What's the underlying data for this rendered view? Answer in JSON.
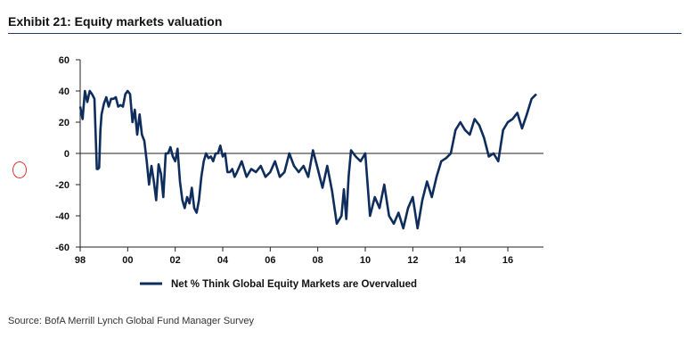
{
  "header": {
    "title": "Exhibit 21: Equity markets valuation"
  },
  "footer": {
    "source": "Source: BofA Merrill Lynch Global Fund Manager Survey"
  },
  "colors": {
    "series": "#0e2d5c",
    "rule": "#1f3a6b",
    "marker": "#e0312e"
  },
  "chart_data": {
    "type": "line",
    "title": "",
    "xlabel": "",
    "ylabel": "",
    "xlim": [
      1998,
      2017.5
    ],
    "ylim": [
      -60,
      60
    ],
    "x_ticks": [
      "98",
      "00",
      "02",
      "04",
      "06",
      "08",
      "10",
      "12",
      "14",
      "16"
    ],
    "y_ticks": [
      60,
      40,
      20,
      0,
      -20,
      -40,
      -60
    ],
    "legend": "bottom-center",
    "series": [
      {
        "name": "Net % Think Global Equity Markets are Overvalued",
        "x": [
          1998.0,
          1998.1,
          1998.2,
          1998.3,
          1998.4,
          1998.5,
          1998.6,
          1998.7,
          1998.75,
          1998.8,
          1998.85,
          1998.9,
          1999.0,
          1999.1,
          1999.2,
          1999.3,
          1999.4,
          1999.5,
          1999.6,
          1999.7,
          1999.8,
          1999.9,
          2000.0,
          2000.1,
          2000.2,
          2000.3,
          2000.4,
          2000.5,
          2000.6,
          2000.7,
          2000.8,
          2000.9,
          2001.0,
          2001.1,
          2001.2,
          2001.3,
          2001.4,
          2001.5,
          2001.6,
          2001.7,
          2001.8,
          2001.9,
          2002.0,
          2002.1,
          2002.2,
          2002.3,
          2002.4,
          2002.5,
          2002.6,
          2002.7,
          2002.8,
          2002.9,
          2003.0,
          2003.1,
          2003.2,
          2003.3,
          2003.4,
          2003.5,
          2003.6,
          2003.7,
          2003.8,
          2003.9,
          2004.0,
          2004.1,
          2004.2,
          2004.3,
          2004.4,
          2004.5,
          2004.6,
          2004.8,
          2005.0,
          2005.2,
          2005.4,
          2005.6,
          2005.8,
          2006.0,
          2006.2,
          2006.4,
          2006.6,
          2006.8,
          2007.0,
          2007.2,
          2007.4,
          2007.6,
          2007.8,
          2008.0,
          2008.2,
          2008.4,
          2008.6,
          2008.8,
          2009.0,
          2009.1,
          2009.2,
          2009.3,
          2009.4,
          2009.6,
          2009.8,
          2010.0,
          2010.2,
          2010.4,
          2010.6,
          2010.8,
          2011.0,
          2011.2,
          2011.4,
          2011.6,
          2011.8,
          2012.0,
          2012.2,
          2012.4,
          2012.6,
          2012.8,
          2013.0,
          2013.2,
          2013.4,
          2013.6,
          2013.8,
          2014.0,
          2014.2,
          2014.4,
          2014.6,
          2014.8,
          2015.0,
          2015.2,
          2015.4,
          2015.6,
          2015.8,
          2016.0,
          2016.2,
          2016.4,
          2016.6,
          2016.8,
          2017.0,
          2017.2
        ],
        "values": [
          30,
          22,
          40,
          33,
          40,
          38,
          35,
          -10,
          -10,
          -9,
          15,
          25,
          32,
          36,
          30,
          35,
          35,
          36,
          30,
          31,
          30,
          38,
          40,
          38,
          20,
          28,
          12,
          25,
          12,
          8,
          -5,
          -20,
          -8,
          -18,
          -30,
          -7,
          -13,
          -28,
          0,
          0,
          4,
          -2,
          -5,
          3,
          -18,
          -30,
          -35,
          -28,
          -32,
          -22,
          -35,
          -38,
          -30,
          -15,
          -5,
          0,
          -3,
          -2,
          -5,
          0,
          0,
          5,
          -2,
          0,
          -12,
          -12,
          -10,
          -15,
          -12,
          -5,
          -15,
          -10,
          -12,
          -8,
          -15,
          -12,
          -5,
          -15,
          -12,
          0,
          -8,
          -12,
          -8,
          -15,
          2,
          -10,
          -22,
          -8,
          -24,
          -45,
          -40,
          -23,
          -42,
          -15,
          2,
          -2,
          -5,
          0,
          -40,
          -28,
          -35,
          -20,
          -40,
          -45,
          -38,
          -48,
          -35,
          -28,
          -48,
          -30,
          -18,
          -28,
          -15,
          -5,
          -3,
          0,
          15,
          20,
          15,
          12,
          22,
          18,
          10,
          -2,
          0,
          -5,
          15,
          20,
          22,
          26,
          16,
          25,
          35,
          38
        ]
      }
    ]
  }
}
